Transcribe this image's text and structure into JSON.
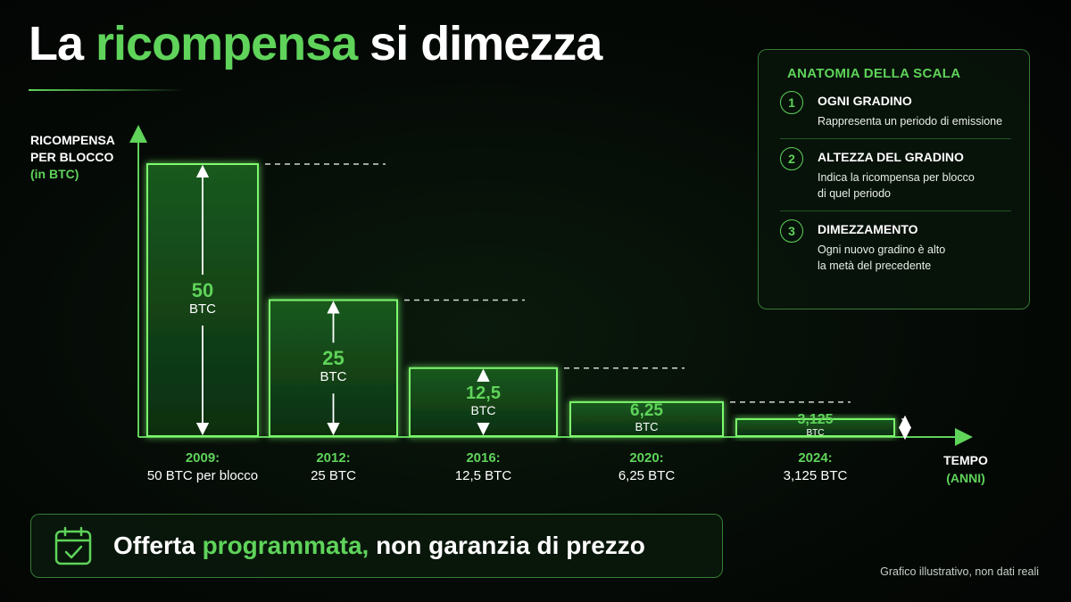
{
  "title": {
    "part1": "La ",
    "accent": "ricompensa",
    "part2": " si dimezza"
  },
  "chart_data": {
    "type": "bar",
    "ylabel": [
      "RICOMPENSA",
      "PER BLOCCO",
      "(in BTC)"
    ],
    "xlabel": [
      "TEMPO",
      "(ANNI)"
    ],
    "ylim": [
      0,
      50
    ],
    "categories": [
      "2009",
      "2012",
      "2016",
      "2020",
      "2024"
    ],
    "values": [
      50,
      25,
      12.5,
      6.25,
      3.125
    ],
    "bar_value_labels": [
      "50",
      "25",
      "12,5",
      "6,25",
      "3,125"
    ],
    "bar_unit_label": "BTC",
    "tick_labels": [
      {
        "year": "2009:",
        "desc": "50 BTC per blocco"
      },
      {
        "year": "2012:",
        "desc": "25 BTC"
      },
      {
        "year": "2016:",
        "desc": "12,5 BTC"
      },
      {
        "year": "2020:",
        "desc": "6,25 BTC"
      },
      {
        "year": "2024:",
        "desc": "3,125 BTC"
      }
    ],
    "grid": false,
    "colors": {
      "accent": "#5fd35a",
      "bar_fill": "#0f3a14",
      "bar_stroke": "#7dfa6e"
    }
  },
  "panel": {
    "title": "ANATOMIA DELLA SCALA",
    "items": [
      {
        "num": "1",
        "head": "OGNI GRADINO",
        "lines": [
          "Rappresenta un periodo di emissione"
        ]
      },
      {
        "num": "2",
        "head": "ALTEZZA DEL GRADINO",
        "lines": [
          "Indica la ricompensa per blocco",
          "di quel periodo"
        ]
      },
      {
        "num": "3",
        "head": "DIMEZZAMENTO",
        "lines": [
          "Ogni nuovo gradino è alto",
          "la metà del precedente"
        ]
      }
    ]
  },
  "banner": {
    "icon": "calendar-check-icon",
    "part1": "Offerta ",
    "accent": "programmata,",
    "part2": " non garanzia di prezzo"
  },
  "footnote": "Grafico illustrativo, non dati reali"
}
